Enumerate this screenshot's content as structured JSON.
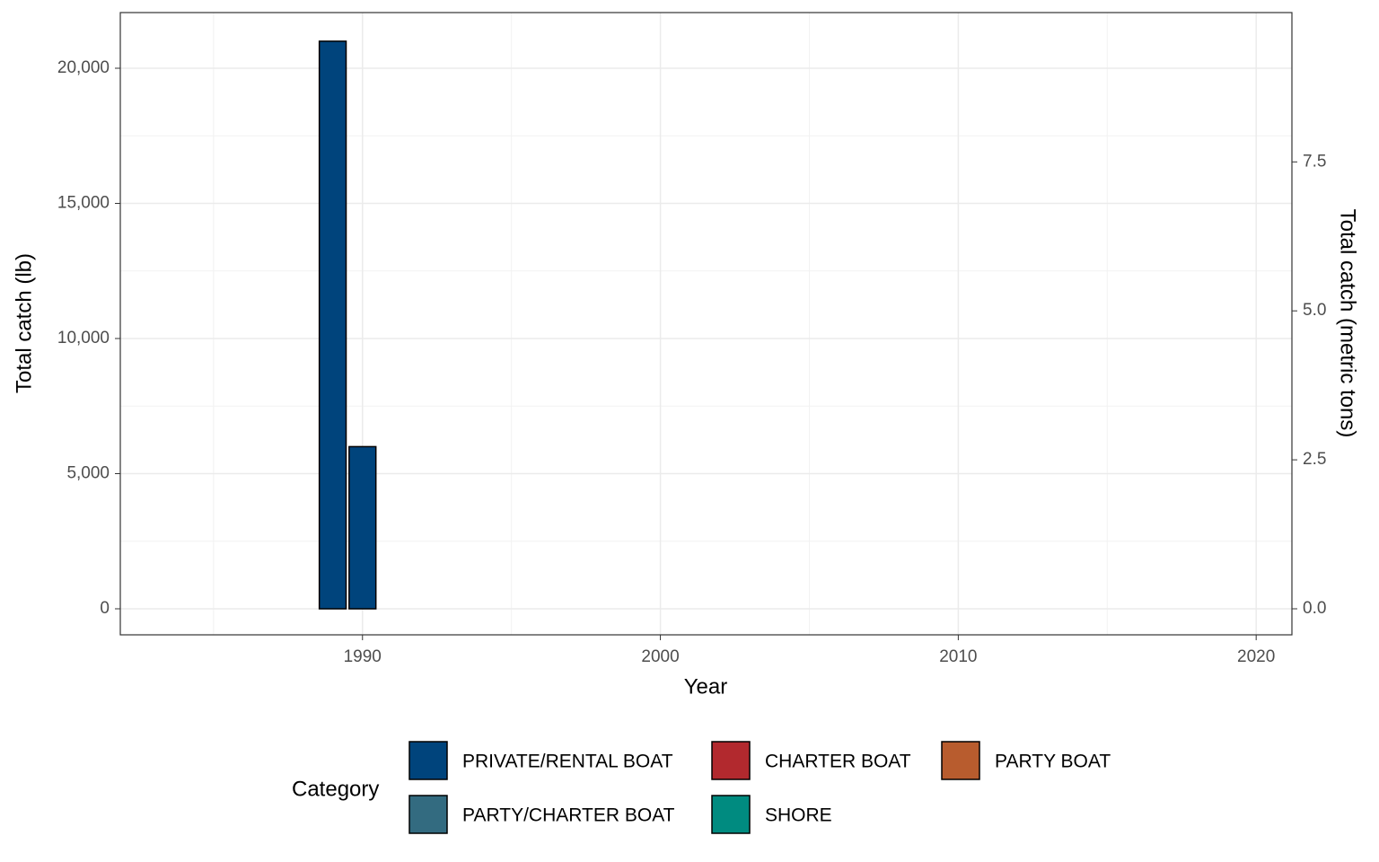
{
  "chart_data": {
    "type": "bar",
    "stacked": true,
    "x_label": "Year",
    "y_label": "Total catch (lb)",
    "y2_label": "Total catch (metric tons)",
    "legend_title": "Category",
    "x": [
      1984,
      1985,
      1986,
      1987,
      1988,
      1989,
      1990,
      1991,
      1992,
      1993,
      1994,
      1995,
      1996,
      1997,
      1998,
      1999,
      2000,
      2001,
      2002,
      2003,
      2004,
      2005,
      2006,
      2007,
      2008,
      2009,
      2010,
      2011,
      2012,
      2013,
      2014,
      2015,
      2016,
      2017,
      2018,
      2019
    ],
    "series": [
      {
        "name": "PRIVATE/RENTAL BOAT",
        "color": "#00447c",
        "values": [
          0,
          0,
          0,
          0,
          0,
          21000,
          6000,
          0,
          0,
          0,
          0,
          0,
          0,
          0,
          0,
          0,
          0,
          0,
          0,
          0,
          0,
          0,
          0,
          0,
          0,
          0,
          0,
          0,
          0,
          0,
          0,
          0,
          0,
          0,
          0,
          0
        ]
      },
      {
        "name": "CHARTER BOAT",
        "color": "#b2292e",
        "values": [
          null,
          null,
          null,
          null,
          null,
          null,
          null,
          null,
          null,
          null,
          null,
          null,
          null,
          null,
          null,
          null,
          null,
          null,
          null,
          null,
          null,
          null,
          null,
          null,
          null,
          null,
          null,
          null,
          null,
          null,
          null,
          null,
          null,
          null,
          null,
          null
        ]
      },
      {
        "name": "PARTY BOAT",
        "color": "#b85c2e",
        "values": [
          null,
          null,
          null,
          null,
          null,
          null,
          null,
          null,
          null,
          null,
          null,
          null,
          null,
          null,
          null,
          null,
          null,
          null,
          null,
          null,
          null,
          null,
          null,
          null,
          null,
          null,
          null,
          null,
          null,
          null,
          null,
          null,
          null,
          null,
          null,
          null
        ]
      },
      {
        "name": "PARTY/CHARTER BOAT",
        "color": "#336b80",
        "values": [
          null,
          null,
          null,
          null,
          null,
          null,
          null,
          null,
          null,
          null,
          null,
          null,
          null,
          null,
          null,
          null,
          null,
          null,
          null,
          null,
          null,
          null,
          null,
          null,
          null,
          null,
          null,
          null,
          null,
          null,
          null,
          null,
          null,
          null,
          null,
          null
        ]
      },
      {
        "name": "SHORE",
        "color": "#008b80",
        "values": [
          null,
          null,
          null,
          null,
          null,
          null,
          null,
          null,
          null,
          null,
          null,
          null,
          null,
          null,
          null,
          null,
          null,
          null,
          null,
          null,
          null,
          null,
          null,
          null,
          null,
          null,
          null,
          null,
          null,
          null,
          null,
          null,
          null,
          null,
          null,
          null
        ]
      }
    ],
    "xlim": [
      1981.87,
      2021.2
    ],
    "xticks": [
      1990,
      2000,
      2010,
      2020
    ],
    "ylim": [
      -963,
      22060
    ],
    "yticks": [
      0,
      {
        "value": 5000,
        "label": "5,000"
      },
      {
        "value": 10000,
        "label": "10,000"
      },
      {
        "value": 15000,
        "label": "15,000"
      },
      {
        "value": 20000,
        "label": "20,000"
      }
    ],
    "y2lim": [
      -0.437,
      10.006
    ],
    "y2ticks": [
      {
        "value": 0,
        "label": "0.0"
      },
      {
        "value": 2.5,
        "label": "2.5"
      },
      {
        "value": 5,
        "label": "5.0"
      },
      {
        "value": 7.5,
        "label": "7.5"
      }
    ],
    "grid": true,
    "legend_position": "bottom"
  }
}
